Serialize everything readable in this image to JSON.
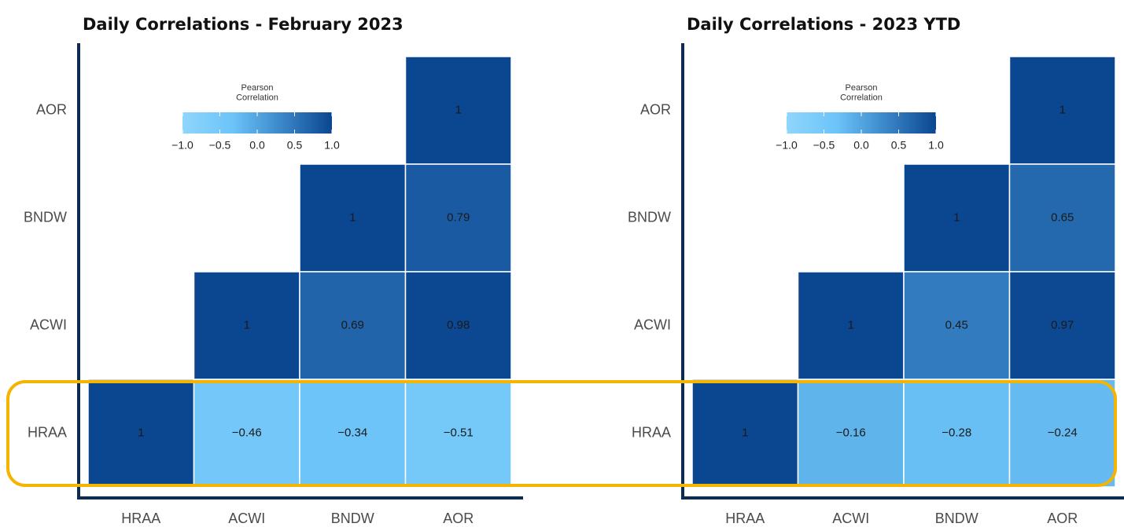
{
  "chart_data": [
    {
      "type": "heatmap",
      "title": "Daily Correlations - February 2023",
      "x_categories": [
        "HRAA",
        "ACWI",
        "BNDW",
        "AOR"
      ],
      "y_categories": [
        "AOR",
        "BNDW",
        "ACWI",
        "HRAA"
      ],
      "values": [
        [
          null,
          null,
          null,
          1
        ],
        [
          null,
          null,
          1,
          0.79
        ],
        [
          null,
          1,
          0.69,
          0.98
        ],
        [
          1,
          -0.46,
          -0.34,
          -0.51
        ]
      ],
      "value_labels": [
        [
          null,
          null,
          null,
          "1"
        ],
        [
          null,
          null,
          "1",
          "0.79"
        ],
        [
          null,
          "1",
          "0.69",
          "0.98"
        ],
        [
          "1",
          "−0.46",
          "−0.34",
          "−0.51"
        ]
      ],
      "colorbar_title": "Pearson\nCorrelation",
      "clim": [
        -1,
        1
      ],
      "colorbar_ticks": [
        {
          "value": -1,
          "label": "−1.0"
        },
        {
          "value": -0.5,
          "label": "−0.5"
        },
        {
          "value": 0,
          "label": "0.0"
        },
        {
          "value": 0.5,
          "label": "0.5"
        },
        {
          "value": 1,
          "label": "1.0"
        }
      ],
      "colors": [
        "#8fd6fc",
        "#6cc4f8",
        "#3a86c8",
        "#0b4690"
      ]
    },
    {
      "type": "heatmap",
      "title": "Daily Correlations - 2023 YTD",
      "x_categories": [
        "HRAA",
        "ACWI",
        "BNDW",
        "AOR"
      ],
      "y_categories": [
        "AOR",
        "BNDW",
        "ACWI",
        "HRAA"
      ],
      "values": [
        [
          null,
          null,
          null,
          1
        ],
        [
          null,
          null,
          1,
          0.65
        ],
        [
          null,
          1,
          0.45,
          0.97
        ],
        [
          1,
          -0.16,
          -0.28,
          -0.24
        ]
      ],
      "value_labels": [
        [
          null,
          null,
          null,
          "1"
        ],
        [
          null,
          null,
          "1",
          "0.65"
        ],
        [
          null,
          "1",
          "0.45",
          "0.97"
        ],
        [
          "1",
          "−0.16",
          "−0.28",
          "−0.24"
        ]
      ],
      "colorbar_title": "Pearson\nCorrelation",
      "clim": [
        -1,
        1
      ],
      "colorbar_ticks": [
        {
          "value": -1,
          "label": "−1.0"
        },
        {
          "value": -0.5,
          "label": "−0.5"
        },
        {
          "value": 0,
          "label": "0.0"
        },
        {
          "value": 0.5,
          "label": "0.5"
        },
        {
          "value": 1,
          "label": "1.0"
        }
      ],
      "colors": [
        "#8fd6fc",
        "#6cc4f8",
        "#3a86c8",
        "#0b4690"
      ]
    }
  ]
}
